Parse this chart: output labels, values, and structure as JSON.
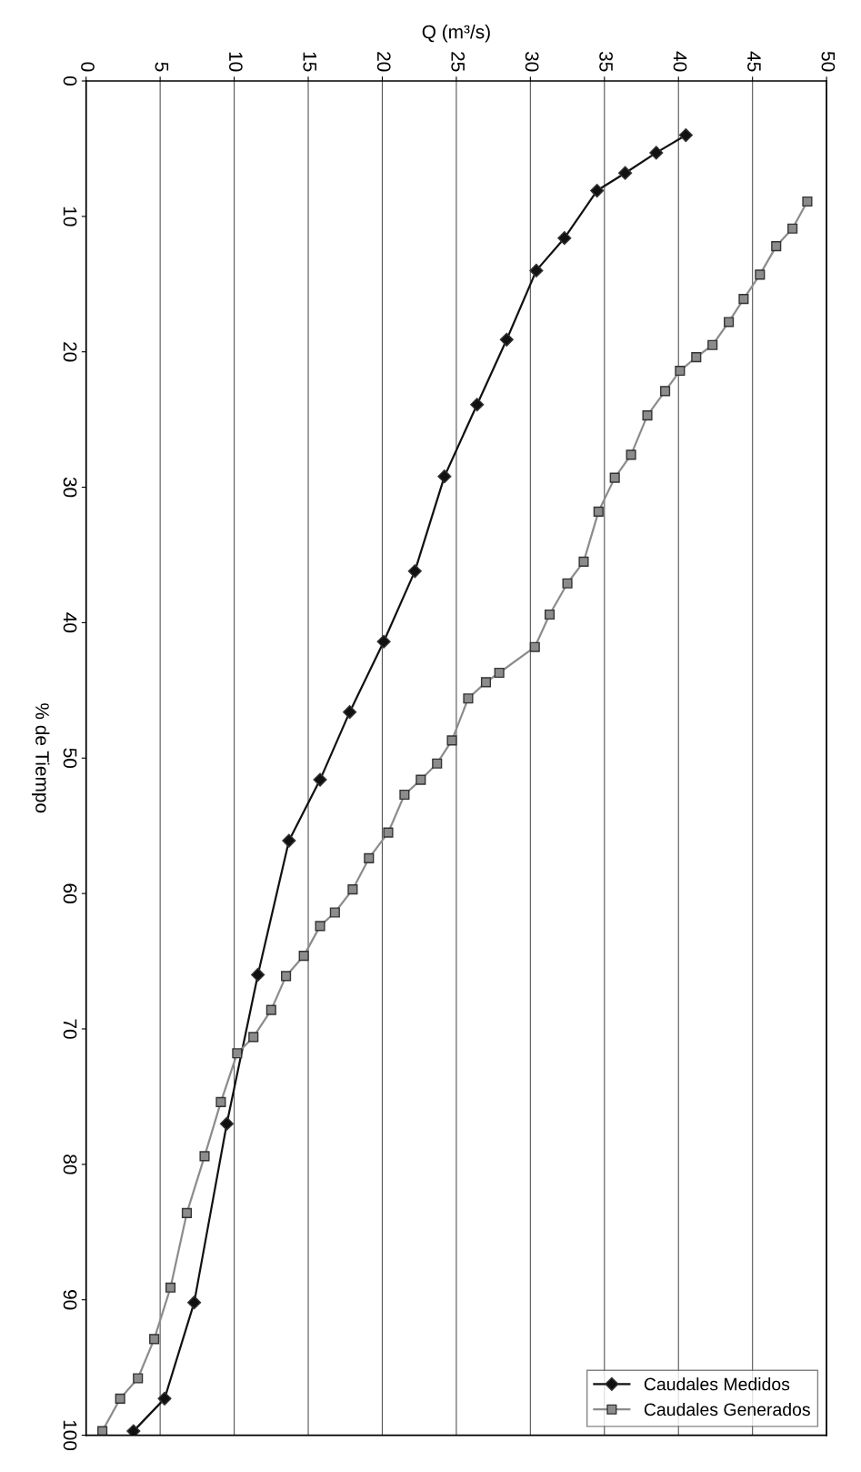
{
  "chart_data": {
    "type": "line",
    "orientation": "horizontal",
    "xlabel": "Q (m³/s)",
    "ylabel": "% de Tiempo",
    "xlim": [
      0,
      50
    ],
    "xticks": [
      0,
      5,
      10,
      15,
      20,
      25,
      30,
      35,
      40,
      45,
      50
    ],
    "ylim": [
      100,
      0
    ],
    "yticks": [
      0,
      10,
      20,
      30,
      40,
      50,
      60,
      70,
      80,
      90,
      100
    ],
    "grid": "x",
    "legend": "bottom right",
    "line_style": "solid",
    "series": [
      {
        "name": "Caudales Medidos",
        "color": "#111111",
        "marker": "diamond",
        "x": [
          4.0,
          5.3,
          6.8,
          8.1,
          11.6,
          14.0,
          19.1,
          23.9,
          29.2,
          36.2,
          41.4,
          46.6,
          51.6,
          56.1,
          66.0,
          77.0,
          90.2,
          97.3,
          99.7
        ],
        "values": [
          40.5,
          38.5,
          36.4,
          34.5,
          32.3,
          30.4,
          28.4,
          26.4,
          24.2,
          22.2,
          20.1,
          17.8,
          15.8,
          13.7,
          11.6,
          9.5,
          7.3,
          5.3,
          3.2
        ]
      },
      {
        "name": "Caudales Generados",
        "color": "#8c8c8c",
        "marker": "square",
        "x": [
          8.9,
          10.9,
          12.2,
          14.3,
          16.1,
          17.8,
          19.5,
          20.4,
          21.4,
          22.9,
          24.7,
          27.6,
          29.3,
          31.8,
          35.5,
          37.1,
          39.4,
          41.8,
          43.7,
          44.4,
          45.6,
          48.7,
          50.4,
          51.6,
          52.7,
          55.5,
          57.4,
          59.7,
          61.4,
          62.4,
          64.6,
          66.1,
          68.6,
          70.6,
          71.8,
          75.4,
          79.4,
          83.6,
          89.1,
          92.9,
          95.8,
          97.3,
          99.7
        ],
        "values": [
          48.7,
          47.7,
          46.6,
          45.5,
          44.4,
          43.4,
          42.3,
          41.2,
          40.1,
          39.1,
          37.9,
          36.8,
          35.7,
          34.6,
          33.6,
          32.5,
          31.3,
          30.3,
          27.9,
          27.0,
          25.8,
          24.7,
          23.7,
          22.6,
          21.5,
          20.4,
          19.1,
          18.0,
          16.8,
          15.8,
          14.7,
          13.5,
          12.5,
          11.3,
          10.2,
          9.1,
          8.0,
          6.8,
          5.7,
          4.6,
          3.5,
          2.3,
          1.1
        ]
      }
    ]
  }
}
